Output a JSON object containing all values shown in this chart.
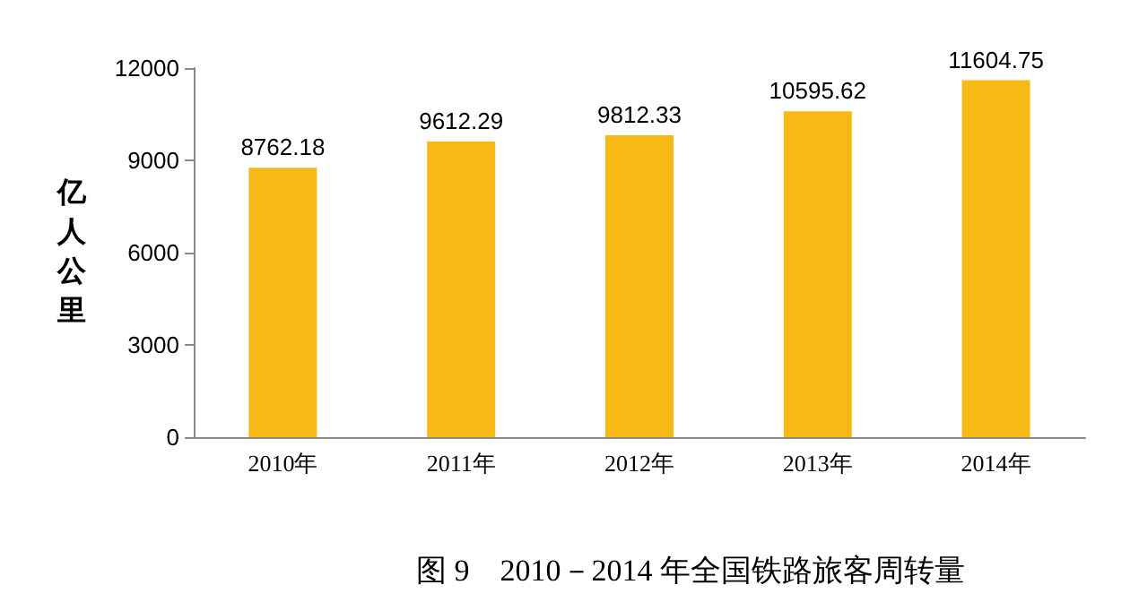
{
  "chart_data": {
    "type": "bar",
    "title": "图 9　2010－2014 年全国铁路旅客周转量",
    "ylabel": "亿人公里",
    "categories": [
      "2010年",
      "2011年",
      "2012年",
      "2013年",
      "2014年"
    ],
    "values": [
      8762.18,
      9612.29,
      9812.33,
      10595.62,
      11604.75
    ],
    "color": "#f7b916",
    "ylim": [
      0,
      12000
    ],
    "yticks": [
      0,
      3000,
      6000,
      9000,
      12000
    ],
    "grid": false,
    "data_labels": true
  }
}
